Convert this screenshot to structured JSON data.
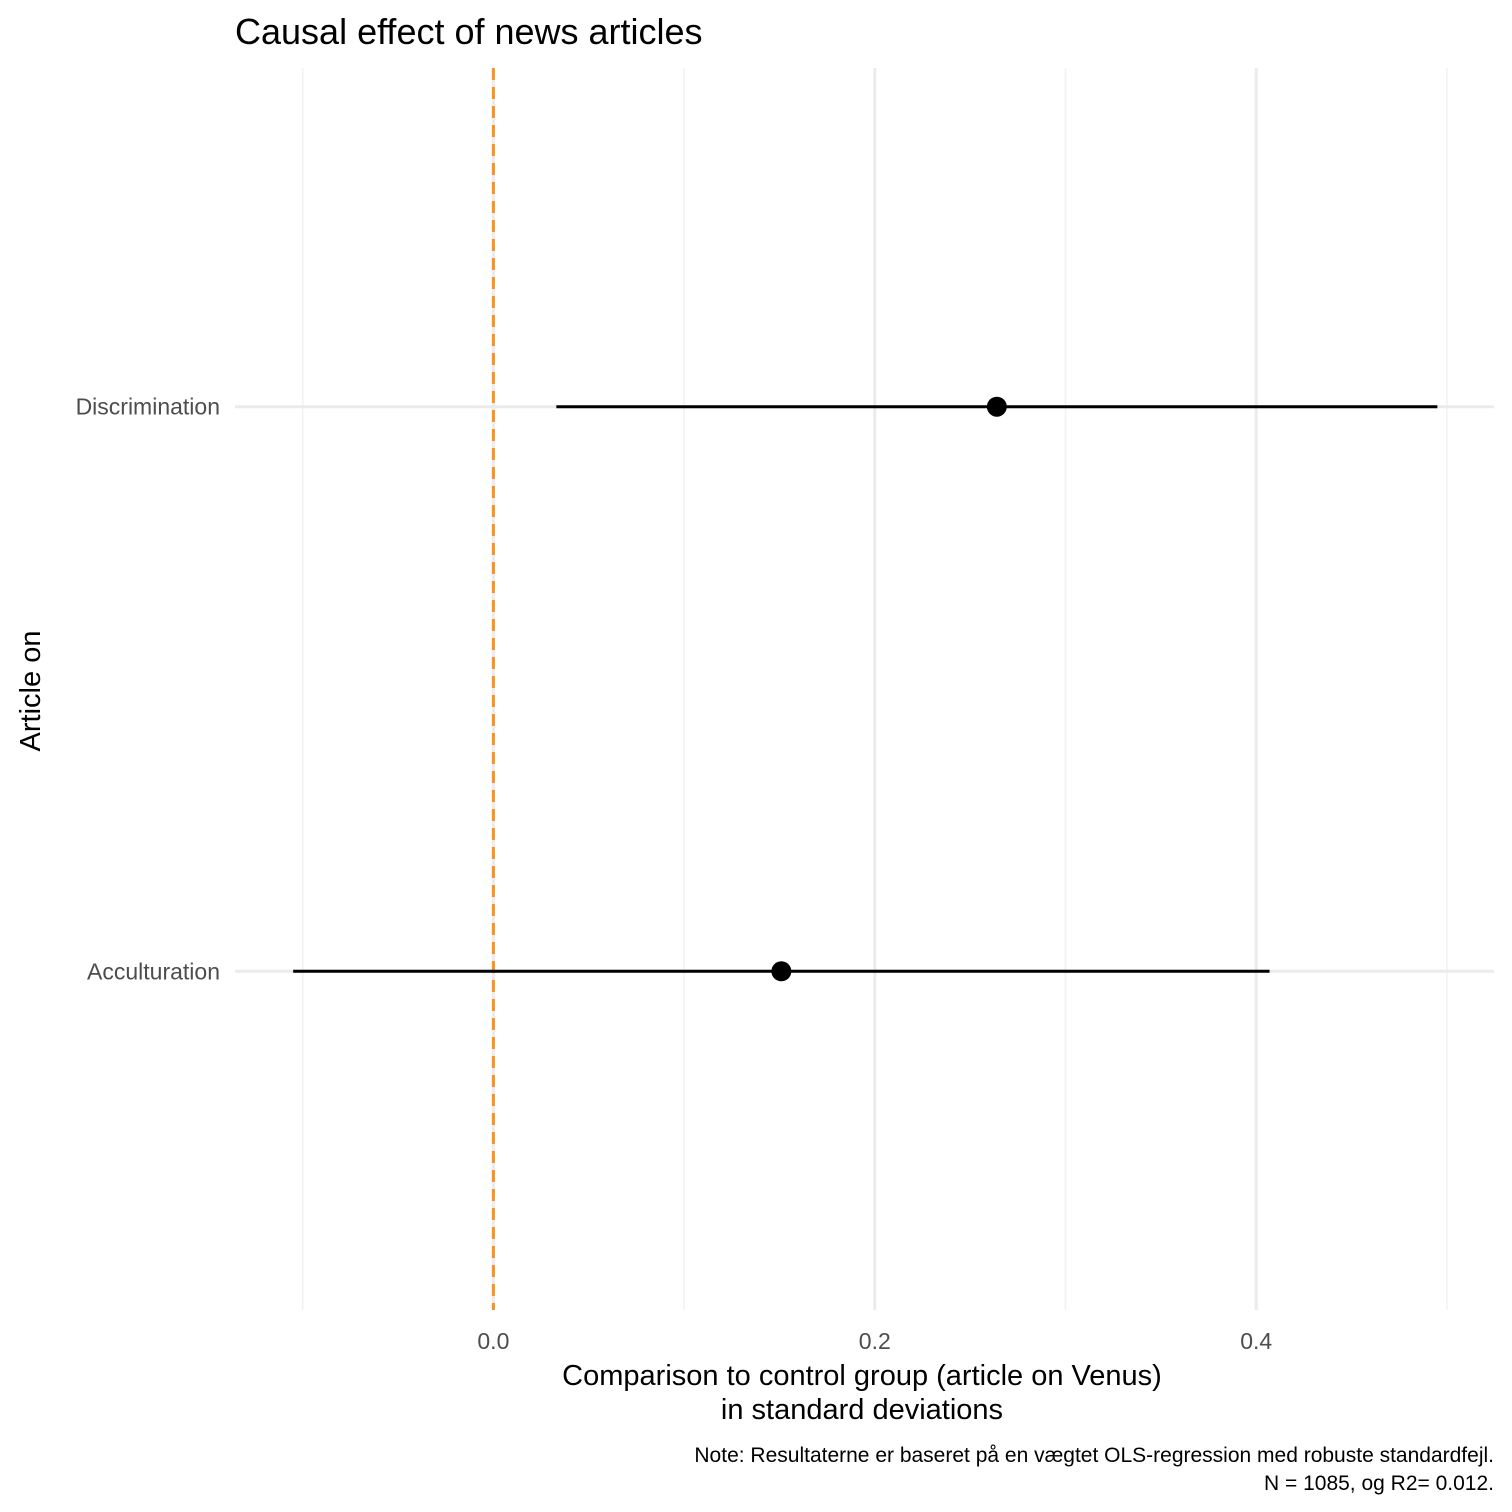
{
  "chart_data": {
    "type": "scatter",
    "subtype": "coefficient-plot",
    "title": "Causal effect of news articles",
    "xlabel": {
      "line1": "Comparison to control group (article on Venus)",
      "line2": "in standard deviations"
    },
    "ylabel": "Article on",
    "caption": {
      "line1": "Note: Resultaterne er baseret på en vægtet OLS-regression med robuste standardfejl.",
      "line2": "N = 1085, og R2= 0.012."
    },
    "xlim": [
      -0.1355,
      0.5247
    ],
    "x_ticks": [
      {
        "value": 0.0,
        "label": "0.0"
      },
      {
        "value": 0.2,
        "label": "0.2"
      },
      {
        "value": 0.4,
        "label": "0.4"
      }
    ],
    "x_minor_ticks": [
      -0.1,
      0.1,
      0.3,
      0.5
    ],
    "categories": [
      "Acculturation",
      "Discrimination"
    ],
    "estimates": [
      {
        "category": "Acculturation",
        "estimate": 0.151,
        "ci_low": -0.105,
        "ci_high": 0.407
      },
      {
        "category": "Discrimination",
        "estimate": 0.264,
        "ci_low": 0.033,
        "ci_high": 0.495
      }
    ],
    "reference_line": {
      "x": 0.0,
      "style": "dashed",
      "color": "#f7941d"
    },
    "grid": true,
    "colors": {
      "point": "#000000",
      "errorbar": "#000000",
      "grid_major": "#ebebeb",
      "grid_minor": "#f2f2f2",
      "reference": "#f7941d"
    }
  }
}
